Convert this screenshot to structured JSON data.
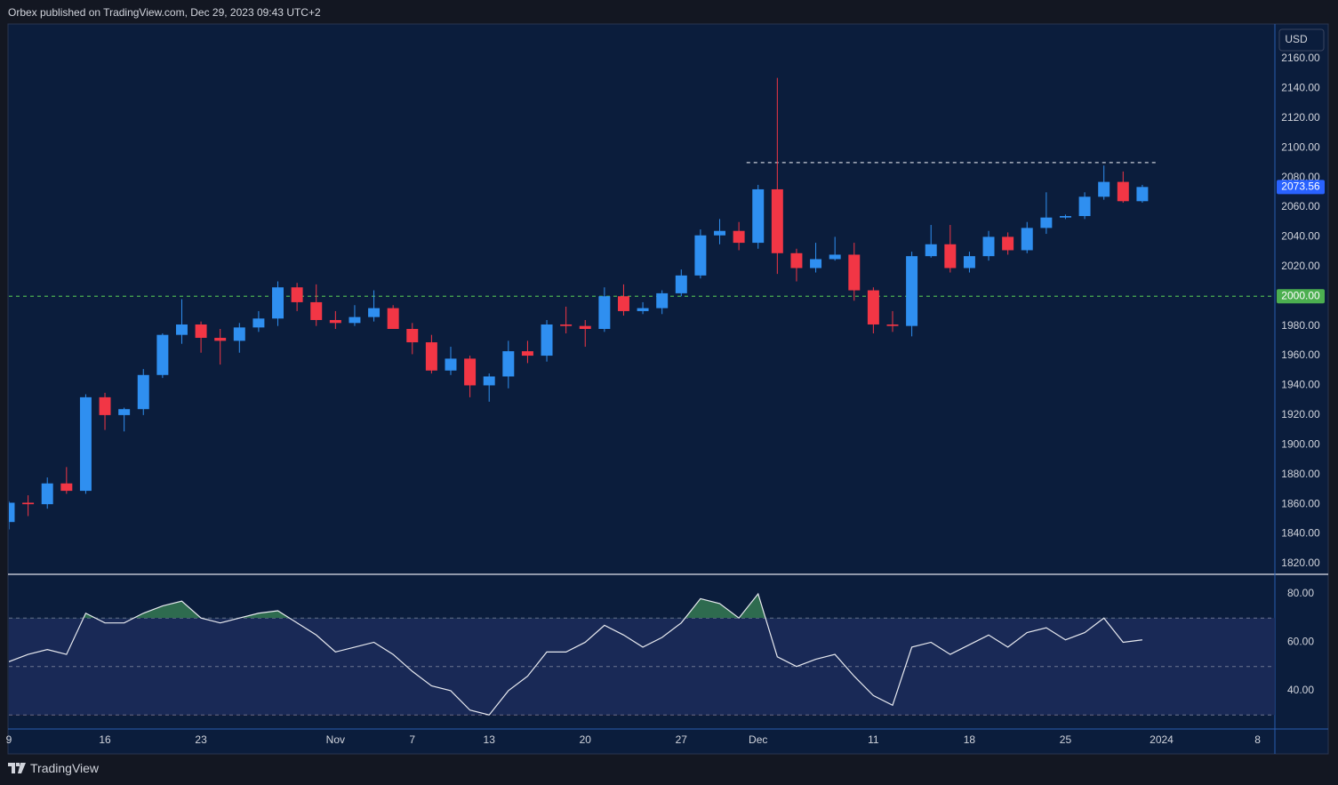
{
  "header": {
    "text": "Orbex published on TradingView.com, Dec 29, 2023 09:43 UTC+2"
  },
  "footer": {
    "brand": "TradingView"
  },
  "chart_data": {
    "type": "candlestick",
    "currency": "USD",
    "up_color": "#2f8ff0",
    "down_color": "#f23645",
    "x": [
      0,
      1,
      2,
      3,
      4,
      5,
      6,
      7,
      8,
      9,
      10,
      11,
      12,
      13,
      14,
      15,
      16,
      17,
      18,
      19,
      20,
      21,
      22,
      23,
      24,
      25,
      26,
      27,
      28,
      29,
      30,
      31,
      32,
      33,
      34,
      35,
      36,
      37,
      38,
      39,
      40,
      41,
      42,
      43,
      44,
      45,
      46,
      47,
      48,
      49,
      50,
      51,
      52,
      53,
      54,
      55,
      56,
      57,
      58,
      59
    ],
    "open": [
      1848,
      1861,
      1860,
      1874,
      1869,
      1932,
      1920,
      1924,
      1947,
      1974,
      1981,
      1972,
      1970,
      1979,
      1985,
      2006,
      1996,
      1984,
      1982,
      1986,
      1992,
      1978,
      1969,
      1950,
      1958,
      1940,
      1946,
      1963,
      1960,
      1981,
      1980,
      1978,
      2000,
      1990,
      1992,
      2002,
      2014,
      2041,
      2044,
      2036,
      2072,
      2029,
      2019,
      2025,
      2028,
      2004,
      1981,
      1980,
      2027,
      2035,
      2019,
      2027,
      2040,
      2031,
      2046,
      2053,
      2054,
      2067,
      2077,
      2064
    ],
    "high": [
      1862,
      1866,
      1878,
      1885,
      1934,
      1935,
      1925,
      1951,
      1975,
      1998,
      1983,
      1978,
      1982,
      1990,
      2010,
      2009,
      2008,
      1990,
      1994,
      2004,
      1994,
      1982,
      1974,
      1966,
      1960,
      1948,
      1970,
      1970,
      1984,
      1993,
      1984,
      2006,
      2008,
      1996,
      2004,
      2018,
      2045,
      2052,
      2050,
      2075,
      2147,
      2032,
      2036,
      2040,
      2036,
      2006,
      1990,
      2030,
      2048,
      2048,
      2030,
      2044,
      2043,
      2050,
      2070,
      2055,
      2070,
      2088,
      2084,
      2075
    ],
    "low": [
      1843,
      1852,
      1857,
      1867,
      1867,
      1910,
      1909,
      1920,
      1945,
      1968,
      1962,
      1954,
      1962,
      1976,
      1980,
      1990,
      1980,
      1978,
      1980,
      1983,
      1978,
      1961,
      1948,
      1947,
      1932,
      1929,
      1938,
      1955,
      1956,
      1975,
      1966,
      1976,
      1987,
      1988,
      1988,
      2000,
      2012,
      2035,
      2031,
      2032,
      2015,
      2010,
      2016,
      2024,
      1997,
      1975,
      1976,
      1973,
      2026,
      2016,
      2016,
      2024,
      2028,
      2029,
      2042,
      2052,
      2052,
      2065,
      2063,
      2063
    ],
    "close": [
      1861,
      1860,
      1874,
      1869,
      1932,
      1920,
      1924,
      1947,
      1974,
      1981,
      1972,
      1970,
      1979,
      1985,
      2006,
      1996,
      1984,
      1982,
      1986,
      1992,
      1978,
      1969,
      1950,
      1958,
      1940,
      1946,
      1963,
      1960,
      1981,
      1980,
      1978,
      2000,
      1990,
      1992,
      2002,
      2014,
      2041,
      2044,
      2036,
      2072,
      2029,
      2019,
      2025,
      2028,
      2004,
      1981,
      1980,
      2027,
      2035,
      2019,
      2027,
      2040,
      2031,
      2046,
      2053,
      2054,
      2067,
      2077,
      2064,
      2073.56
    ],
    "xlim": [
      0,
      65.9
    ],
    "xticks": [
      {
        "value": 0,
        "label": "9"
      },
      {
        "value": 5,
        "label": "16"
      },
      {
        "value": 10,
        "label": "23"
      },
      {
        "value": 17,
        "label": "Nov"
      },
      {
        "value": 21,
        "label": "7"
      },
      {
        "value": 25,
        "label": "13"
      },
      {
        "value": 30,
        "label": "20"
      },
      {
        "value": 35,
        "label": "27"
      },
      {
        "value": 39,
        "label": "Dec"
      },
      {
        "value": 45,
        "label": "11"
      },
      {
        "value": 50,
        "label": "18"
      },
      {
        "value": 55,
        "label": "25"
      },
      {
        "value": 60,
        "label": "2024"
      },
      {
        "value": 65,
        "label": "8"
      }
    ],
    "ylim": [
      1813.4,
      2183.3
    ],
    "yticks": [
      {
        "value": 1820,
        "label": "1820.00"
      },
      {
        "value": 1840,
        "label": "1840.00"
      },
      {
        "value": 1860,
        "label": "1860.00"
      },
      {
        "value": 1880,
        "label": "1880.00"
      },
      {
        "value": 1900,
        "label": "1900.00"
      },
      {
        "value": 1920,
        "label": "1920.00"
      },
      {
        "value": 1940,
        "label": "1940.00"
      },
      {
        "value": 1960,
        "label": "1960.00"
      },
      {
        "value": 1980,
        "label": "1980.00"
      },
      {
        "value": 2000,
        "label": "2000.00"
      },
      {
        "value": 2020,
        "label": "2020.00"
      },
      {
        "value": 2040,
        "label": "2040.00"
      },
      {
        "value": 2060,
        "label": "2060.00"
      },
      {
        "value": 2080,
        "label": "2080.00"
      },
      {
        "value": 2100,
        "label": "2100.00"
      },
      {
        "value": 2120,
        "label": "2120.00"
      },
      {
        "value": 2140,
        "label": "2140.00"
      },
      {
        "value": 2160,
        "label": "2160.00"
      }
    ],
    "lines": [
      {
        "value": 2000,
        "color": "#4caf50"
      },
      {
        "value": 2090,
        "x": [
          38.4,
          59.8
        ],
        "color": "#c8ccd6"
      }
    ],
    "price_tags": [
      {
        "value": 2000,
        "label": "2000.00",
        "color": "#4caf50"
      },
      {
        "value": 2073.56,
        "label": "2073.56",
        "color": "#2962ff"
      }
    ],
    "indicator": {
      "type": "line",
      "color": "#e8eaf0",
      "values": [
        52,
        55,
        57,
        55,
        72,
        68,
        68,
        72,
        75,
        77,
        70,
        68,
        70,
        72,
        73,
        68,
        63,
        56,
        58,
        60,
        55,
        48,
        42,
        40,
        32,
        30,
        40,
        46,
        56,
        56,
        60,
        67,
        63,
        58,
        62,
        68,
        78,
        76,
        70,
        80,
        54,
        50,
        53,
        55,
        46,
        38,
        34,
        58,
        60,
        55,
        59,
        63,
        58,
        64,
        66,
        61,
        64,
        70,
        60,
        61
      ],
      "ylim": [
        24.2,
        87.7
      ],
      "yticks": [
        {
          "value": 40,
          "label": "40.00"
        },
        {
          "value": 60,
          "label": "60.00"
        },
        {
          "value": 80,
          "label": "80.00"
        }
      ],
      "levels": [
        30,
        50,
        70
      ],
      "overbought_color": "#2e6b4f",
      "oversold_color": "#7a2e3a"
    }
  }
}
